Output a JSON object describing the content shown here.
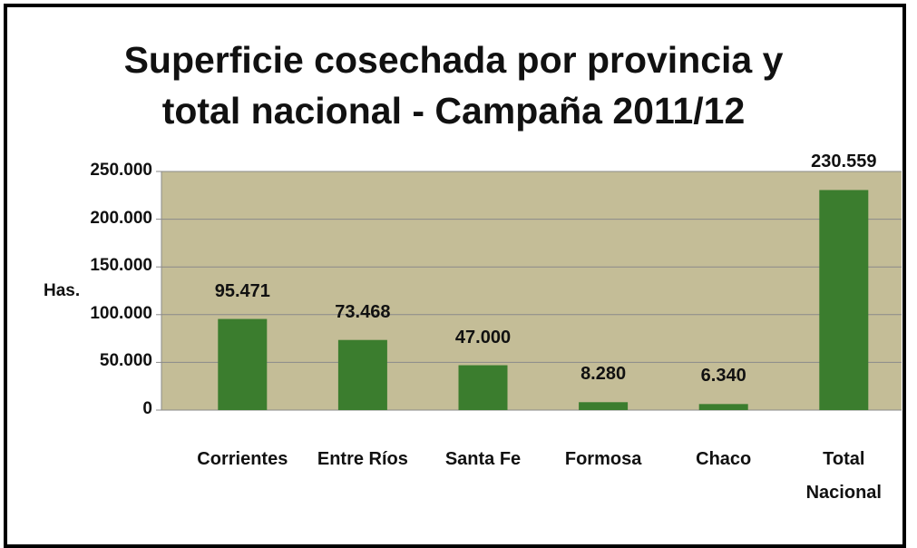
{
  "chart_data": {
    "type": "bar",
    "title": "Superficie cosechada por provincia y total nacional - Campaña 2011/12",
    "ylabel": "Has.",
    "categories": [
      "Corrientes",
      "Entre Ríos",
      "Santa Fe",
      "Formosa",
      "Chaco",
      "Total Nacional"
    ],
    "values": [
      95471,
      73468,
      47000,
      8280,
      6340,
      230559
    ],
    "value_labels": [
      "95.471",
      "73.468",
      "47.000",
      "8.280",
      "6.340",
      "230.559"
    ],
    "color": "#3b7d2e",
    "ylim": [
      0,
      250000
    ],
    "yticks": [
      0,
      {
        "value": 50000,
        "label": "50.000"
      },
      {
        "value": 100000,
        "label": "100.000"
      },
      {
        "value": 150000,
        "label": "150.000"
      },
      {
        "value": 200000,
        "label": "200.000"
      },
      {
        "value": 250000,
        "label": "250.000"
      }
    ],
    "grid": true
  }
}
